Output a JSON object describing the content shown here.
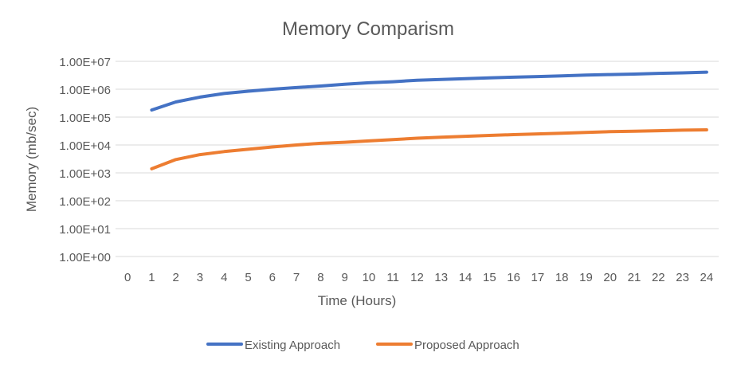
{
  "chart_data": {
    "type": "line",
    "title": "Memory Comparism",
    "xlabel": "Time (Hours)",
    "ylabel": "Memory (mb/sec)",
    "yscale": "log",
    "ylim": [
      1,
      10000000
    ],
    "yticks": [
      1,
      10,
      100,
      1000,
      10000,
      100000,
      1000000,
      10000000
    ],
    "ytick_labels": [
      "1.00E+00",
      "1.00E+01",
      "1.00E+02",
      "1.00E+03",
      "1.00E+04",
      "1.00E+05",
      "1.00E+06",
      "1.00E+07"
    ],
    "x": [
      0,
      1,
      2,
      3,
      4,
      5,
      6,
      7,
      8,
      9,
      10,
      11,
      12,
      13,
      14,
      15,
      16,
      17,
      18,
      19,
      20,
      21,
      22,
      23,
      24
    ],
    "xtick_labels": [
      "0",
      "1",
      "2",
      "3",
      "4",
      "5",
      "6",
      "7",
      "8",
      "9",
      "10",
      "11",
      "12",
      "13",
      "14",
      "15",
      "16",
      "17",
      "18",
      "19",
      "20",
      "21",
      "22",
      "23",
      "24"
    ],
    "grid": true,
    "legend_position": "bottom",
    "series": [
      {
        "name": "Existing Approach",
        "color": "#4472C4",
        "x": [
          1,
          2,
          3,
          4,
          5,
          6,
          7,
          8,
          9,
          10,
          11,
          12,
          13,
          14,
          15,
          16,
          17,
          18,
          19,
          20,
          21,
          22,
          23,
          24
        ],
        "values": [
          180000,
          350000,
          520000,
          700000,
          850000,
          1000000,
          1150000,
          1300000,
          1500000,
          1700000,
          1850000,
          2100000,
          2250000,
          2400000,
          2550000,
          2700000,
          2850000,
          3000000,
          3200000,
          3350000,
          3500000,
          3700000,
          3850000,
          4100000
        ]
      },
      {
        "name": "Proposed Approach",
        "color": "#ED7D31",
        "x": [
          1,
          2,
          3,
          4,
          5,
          6,
          7,
          8,
          9,
          10,
          11,
          12,
          13,
          14,
          15,
          16,
          17,
          18,
          19,
          20,
          21,
          22,
          23,
          24
        ],
        "values": [
          1400,
          3000,
          4500,
          5800,
          7000,
          8500,
          10000,
          11500,
          12500,
          14000,
          15500,
          17500,
          19000,
          20500,
          22000,
          23500,
          25000,
          26500,
          28000,
          30000,
          31000,
          32500,
          34000,
          35000
        ]
      }
    ]
  }
}
